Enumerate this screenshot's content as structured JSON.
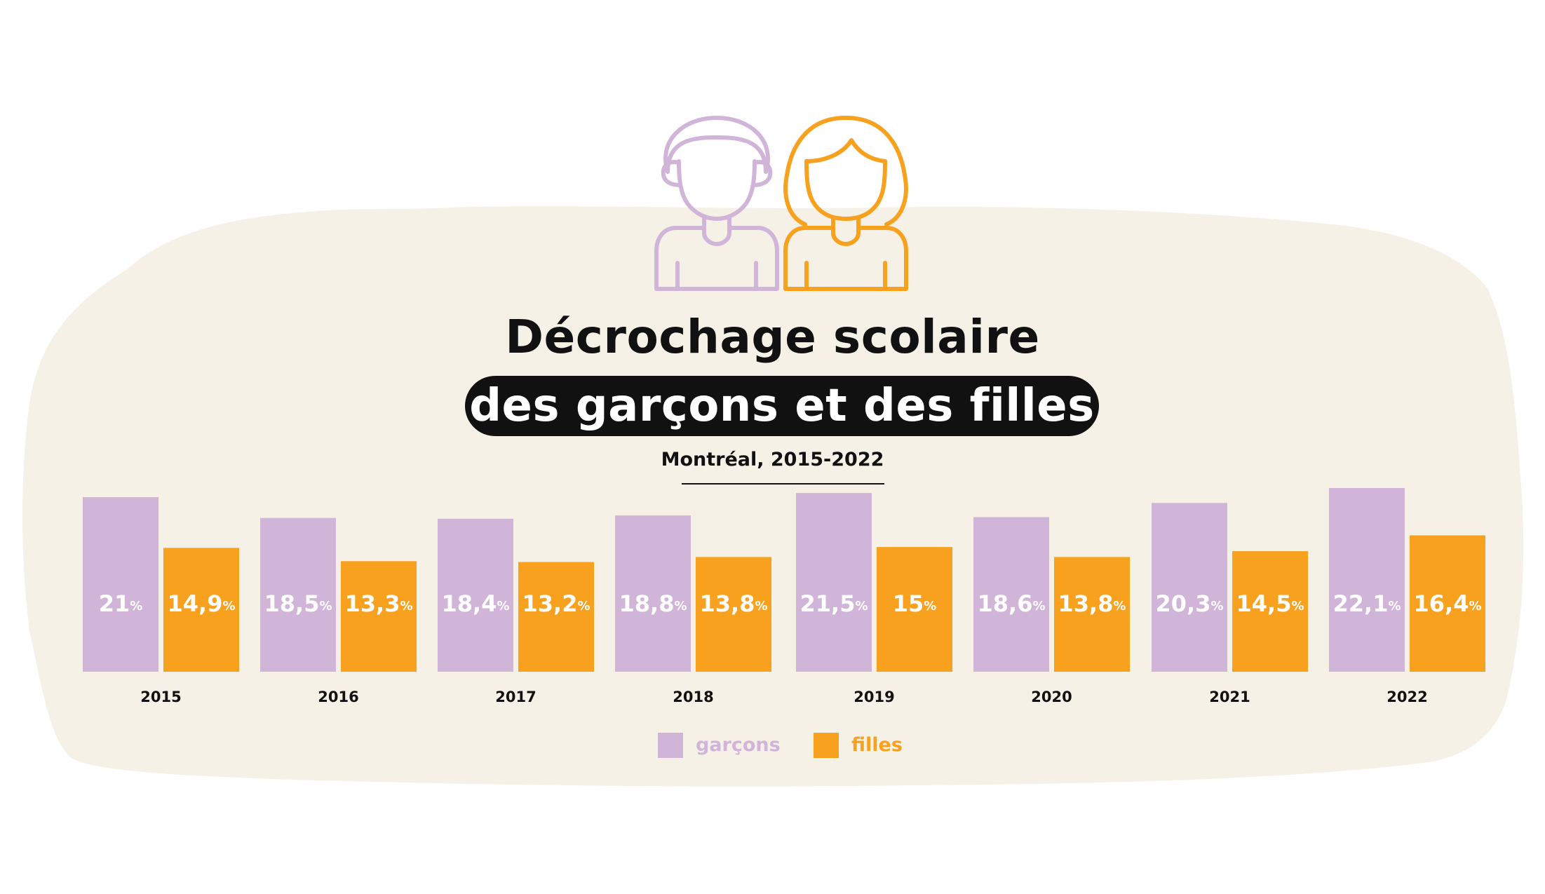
{
  "title": "Décrochage scolaire",
  "subtitle": "des garçons et des filles",
  "region_label": "Montréal, 2015-2022",
  "colors": {
    "garcons": "#D0B5D8",
    "filles": "#F7A11E",
    "background_blob": "#F5F1E7",
    "text": "#111111"
  },
  "icons": [
    "boy-icon",
    "girl-icon"
  ],
  "legend": [
    {
      "label": "garçons",
      "color": "#D0B5D8"
    },
    {
      "label": "filles",
      "color": "#F7A11E"
    }
  ],
  "chart_data": {
    "type": "bar",
    "title": "Décrochage scolaire des garçons et des filles",
    "subtitle": "Montréal, 2015-2022",
    "categories": [
      "2015",
      "2016",
      "2017",
      "2018",
      "2019",
      "2020",
      "2021",
      "2022"
    ],
    "series": [
      {
        "name": "garçons",
        "color": "#D0B5D8",
        "values": [
          21,
          18.5,
          18.4,
          18.8,
          21.5,
          18.6,
          20.3,
          22.1
        ],
        "labels": [
          "21",
          "18,5",
          "18,4",
          "18,8",
          "21,5",
          "18,6",
          "20,3",
          "22,1"
        ]
      },
      {
        "name": "filles",
        "color": "#F7A11E",
        "values": [
          14.9,
          13.3,
          13.2,
          13.8,
          15,
          13.8,
          14.5,
          16.4
        ],
        "labels": [
          "14,9",
          "13,3",
          "13,2",
          "13,8",
          "15",
          "13,8",
          "14,5",
          "16,4"
        ]
      }
    ],
    "value_suffix": "%",
    "xlabel": "",
    "ylabel": "",
    "ylim": [
      0,
      22.1
    ],
    "grid": false,
    "legend_position": "bottom-center"
  }
}
